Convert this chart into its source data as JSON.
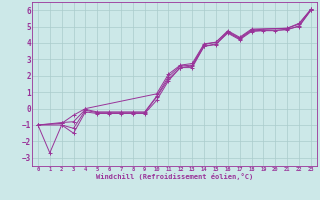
{
  "xlabel": "Windchill (Refroidissement éolien,°C)",
  "background_color": "#cce8e8",
  "grid_color": "#aacccc",
  "line_color": "#993399",
  "xlim": [
    -0.5,
    23.5
  ],
  "ylim": [
    -3.5,
    6.5
  ],
  "yticks": [
    -3,
    -2,
    -1,
    0,
    1,
    2,
    3,
    4,
    5,
    6
  ],
  "xticks": [
    0,
    1,
    2,
    3,
    4,
    5,
    6,
    7,
    8,
    9,
    10,
    11,
    12,
    13,
    14,
    15,
    16,
    17,
    18,
    19,
    20,
    21,
    22,
    23
  ],
  "series1": {
    "x": [
      0,
      1,
      2,
      3,
      4,
      5,
      6,
      7,
      8,
      9,
      10,
      11,
      12,
      13,
      14,
      15,
      16,
      17,
      18,
      19,
      20,
      21,
      22,
      23
    ],
    "y": [
      -1,
      -2.7,
      -1.0,
      -1.2,
      -0.1,
      -0.25,
      -0.25,
      -0.25,
      -0.25,
      -0.25,
      0.7,
      1.8,
      2.5,
      2.6,
      3.8,
      3.95,
      4.6,
      4.2,
      4.7,
      4.75,
      4.75,
      4.85,
      5.0,
      6.0
    ]
  },
  "series2": {
    "x": [
      0,
      2,
      3,
      4,
      5,
      6,
      7,
      8,
      9,
      10,
      11,
      12,
      13,
      14,
      15,
      16,
      17,
      18,
      21,
      22,
      23
    ],
    "y": [
      -1,
      -1.0,
      -1.5,
      -0.2,
      -0.3,
      -0.3,
      -0.3,
      -0.3,
      -0.3,
      0.5,
      1.7,
      2.5,
      2.5,
      3.8,
      3.9,
      4.65,
      4.25,
      4.75,
      4.8,
      5.05,
      6.0
    ]
  },
  "series3": {
    "x": [
      0,
      2,
      3,
      4,
      10,
      11,
      12,
      13,
      14,
      15,
      16,
      17,
      18,
      21,
      22,
      23
    ],
    "y": [
      -1,
      -0.9,
      -0.4,
      0.0,
      0.9,
      2.1,
      2.65,
      2.75,
      3.95,
      4.05,
      4.75,
      4.35,
      4.85,
      4.9,
      5.2,
      6.05
    ]
  },
  "series4": {
    "x": [
      0,
      2,
      3,
      4,
      5,
      6,
      7,
      8,
      9,
      10,
      11,
      12,
      13,
      14,
      15,
      16,
      17,
      18,
      21,
      22,
      23
    ],
    "y": [
      -1,
      -0.85,
      -0.8,
      -0.05,
      -0.2,
      -0.2,
      -0.2,
      -0.2,
      -0.2,
      0.75,
      1.95,
      2.6,
      2.65,
      3.9,
      4.05,
      4.7,
      4.3,
      4.8,
      4.9,
      5.15,
      6.05
    ]
  }
}
